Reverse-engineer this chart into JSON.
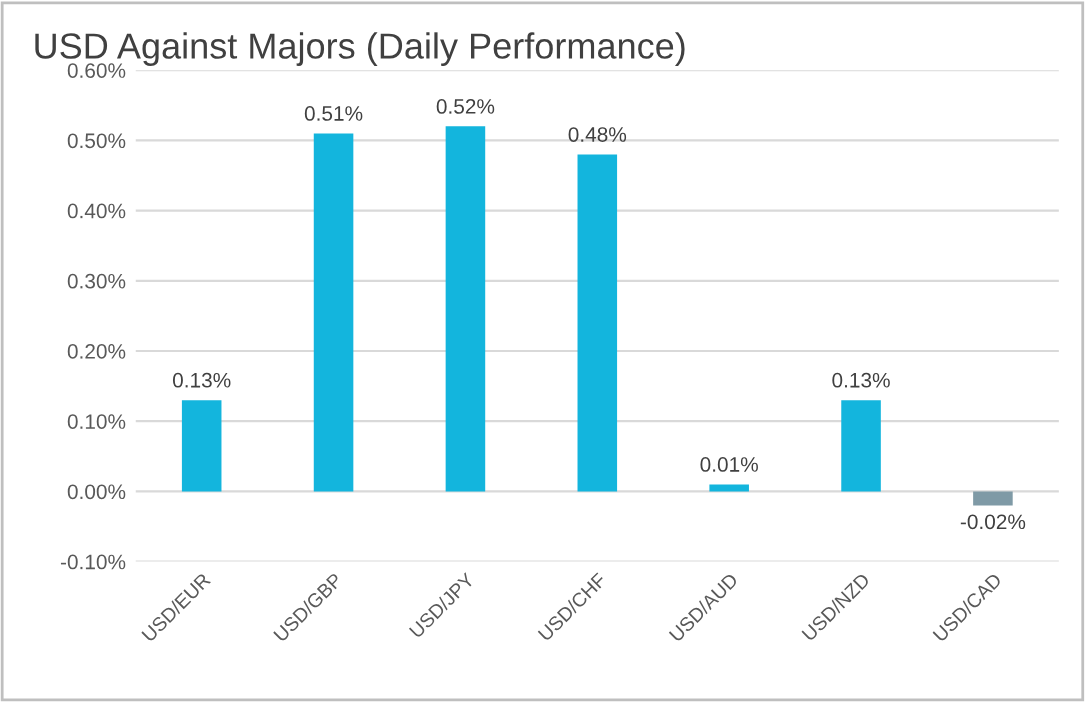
{
  "chart_data": {
    "type": "bar",
    "title": "USD Against Majors (Daily Performance)",
    "categories": [
      "USD/EUR",
      "USD/GBP",
      "USD/JPY",
      "USD/CHF",
      "USD/AUD",
      "USD/NZD",
      "USD/CAD"
    ],
    "values": [
      0.13,
      0.51,
      0.52,
      0.48,
      0.01,
      0.13,
      -0.02
    ],
    "colors": [
      "#13b5dd",
      "#13b5dd",
      "#13b5dd",
      "#13b5dd",
      "#13b5dd",
      "#13b5dd",
      "#7f9aa6"
    ],
    "value_labels": [
      "0.13%",
      "0.51%",
      "0.52%",
      "0.48%",
      "0.01%",
      "0.13%",
      "-0.02%"
    ],
    "ylim": [
      -0.1,
      0.6
    ],
    "yticks": [
      {
        "value": -0.1,
        "label": "-0.10%"
      },
      {
        "value": 0,
        "label": "0.00%"
      },
      {
        "value": 0.1,
        "label": "0.10%"
      },
      {
        "value": 0.2,
        "label": "0.20%"
      },
      {
        "value": 0.3,
        "label": "0.30%"
      },
      {
        "value": 0.4,
        "label": "0.40%"
      },
      {
        "value": 0.5,
        "label": "0.50%"
      },
      {
        "value": 0.6,
        "label": "0.60%"
      }
    ],
    "grid": "y"
  }
}
